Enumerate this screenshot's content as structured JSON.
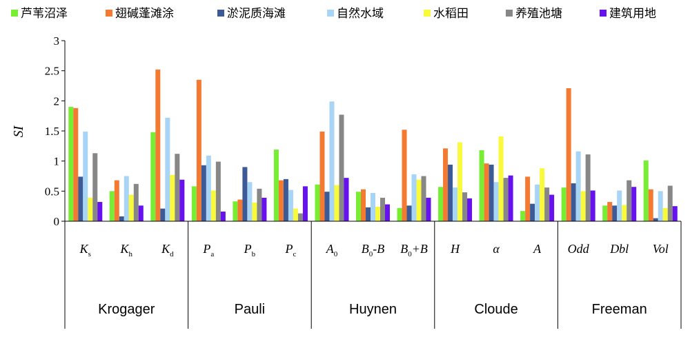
{
  "chart_data": {
    "type": "bar",
    "ylabel": "SI",
    "ylim": [
      0,
      3
    ],
    "yticks": [
      "0",
      "0.5",
      "1",
      "1.5",
      "2",
      "2.5",
      "3"
    ],
    "grid": false,
    "legend_position": "top",
    "groups": [
      {
        "name": "Krogager",
        "count": 3
      },
      {
        "name": "Pauli",
        "count": 3
      },
      {
        "name": "Huynen",
        "count": 3
      },
      {
        "name": "Cloude",
        "count": 3
      },
      {
        "name": "Freeman",
        "count": 3
      }
    ],
    "categories": [
      {
        "main": "K",
        "sub": "s"
      },
      {
        "main": "K",
        "sub": "h"
      },
      {
        "main": "K",
        "sub": "d"
      },
      {
        "main": "P",
        "sub": "a"
      },
      {
        "main": "P",
        "sub": "b"
      },
      {
        "main": "P",
        "sub": "c"
      },
      {
        "main": "A",
        "sub": "0"
      },
      {
        "main": "B",
        "sub": "0",
        "after": "-B"
      },
      {
        "main": "B",
        "sub": "0",
        "after": "+B"
      },
      {
        "main": "H"
      },
      {
        "main": "α"
      },
      {
        "main": "A"
      },
      {
        "main": "Odd"
      },
      {
        "main": "Dbl"
      },
      {
        "main": "Vol"
      }
    ],
    "series": [
      {
        "name": "芦苇沼泽",
        "color": "#77ee33",
        "values": [
          1.9,
          0.5,
          1.48,
          0.58,
          0.33,
          1.19,
          0.61,
          0.49,
          0.22,
          0.57,
          1.18,
          0.17,
          0.56,
          0.26,
          1.01
        ]
      },
      {
        "name": "翅碱蓬滩涂",
        "color": "#f47a32",
        "values": [
          1.88,
          0.68,
          2.52,
          2.35,
          0.36,
          0.68,
          1.49,
          0.53,
          1.52,
          1.21,
          0.96,
          0.74,
          2.21,
          0.32,
          0.53
        ]
      },
      {
        "name": "淤泥质海滩",
        "color": "#3c5a96",
        "values": [
          0.74,
          0.08,
          0.21,
          0.93,
          0.9,
          0.7,
          0.49,
          0.23,
          0.26,
          0.94,
          0.94,
          0.29,
          0.63,
          0.26,
          0.05
        ]
      },
      {
        "name": "自然水域",
        "color": "#a8d4f6",
        "values": [
          1.49,
          0.75,
          1.72,
          1.09,
          0.65,
          0.52,
          1.99,
          0.47,
          0.78,
          0.56,
          0.65,
          0.61,
          1.16,
          0.51,
          0.5
        ]
      },
      {
        "name": "水稻田",
        "color": "#fafa3c",
        "values": [
          0.39,
          0.44,
          0.77,
          0.51,
          0.31,
          0.21,
          0.6,
          0.24,
          0.69,
          1.31,
          1.41,
          0.88,
          0.5,
          0.27,
          0.22
        ]
      },
      {
        "name": "养殖池塘",
        "color": "#878787",
        "values": [
          1.13,
          0.62,
          1.12,
          0.99,
          0.54,
          0.13,
          1.77,
          0.39,
          0.75,
          0.48,
          0.72,
          0.56,
          1.11,
          0.68,
          0.59
        ]
      },
      {
        "name": "建筑用地",
        "color": "#6611ee",
        "values": [
          0.32,
          0.26,
          0.69,
          0.16,
          0.39,
          0.58,
          0.72,
          0.28,
          0.39,
          0.38,
          0.76,
          0.44,
          0.51,
          0.57,
          0.25
        ]
      }
    ]
  }
}
